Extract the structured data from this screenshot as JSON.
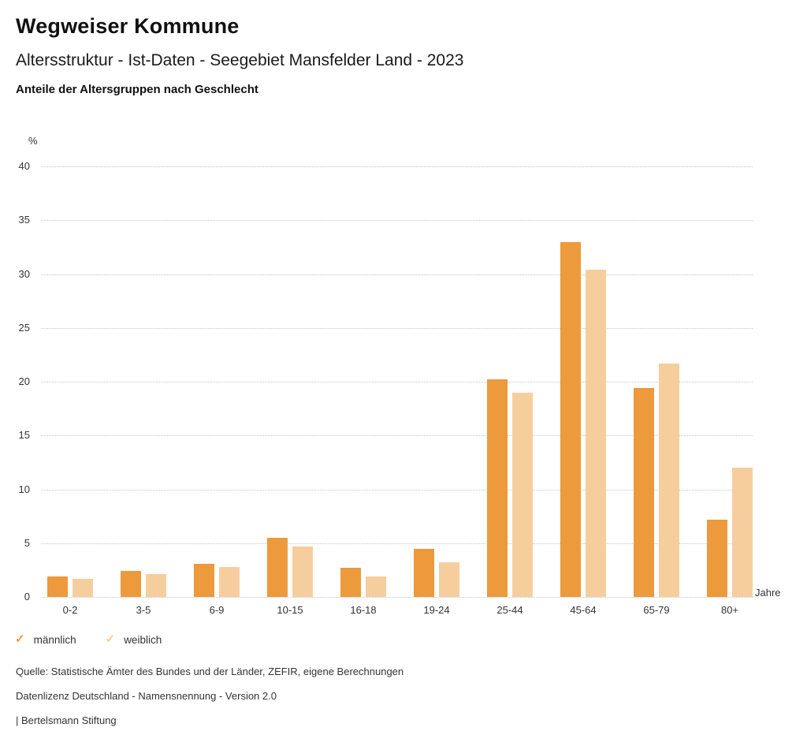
{
  "header": {
    "title": "Wegweiser Kommune",
    "subtitle": "Altersstruktur - Ist-Daten - Seegebiet Mansfelder Land - 2023",
    "subsubtitle": "Anteile der Altersgruppen nach Geschlecht"
  },
  "chart_data": {
    "type": "bar",
    "title": "Anteile der Altersgruppen nach Geschlecht",
    "categories": [
      "0-2",
      "3-5",
      "6-9",
      "10-15",
      "16-18",
      "19-24",
      "25-44",
      "45-64",
      "65-79",
      "80+"
    ],
    "series": [
      {
        "name": "männlich",
        "color": "#EC9A3C",
        "values": [
          1.9,
          2.4,
          3.1,
          5.5,
          2.7,
          4.5,
          20.2,
          33.0,
          19.4,
          7.2
        ]
      },
      {
        "name": "weiblich",
        "color": "#F6CE9D",
        "values": [
          1.7,
          2.1,
          2.8,
          4.7,
          1.9,
          3.2,
          19.0,
          30.4,
          21.7,
          12.0
        ]
      }
    ],
    "xlabel": "Jahre",
    "ylabel": "%",
    "ylim": [
      0,
      40
    ],
    "ytick_step": 5,
    "grid": true,
    "grid_style": "dotted",
    "legend_position": "bottom",
    "legend_marker": "✓"
  },
  "footer": {
    "lines": [
      "Quelle: Statistische Ämter des Bundes und der Länder, ZEFIR, eigene Berechnungen",
      "Datenlizenz Deutschland - Namensnennung - Version 2.0",
      "| Bertelsmann Stiftung"
    ]
  }
}
